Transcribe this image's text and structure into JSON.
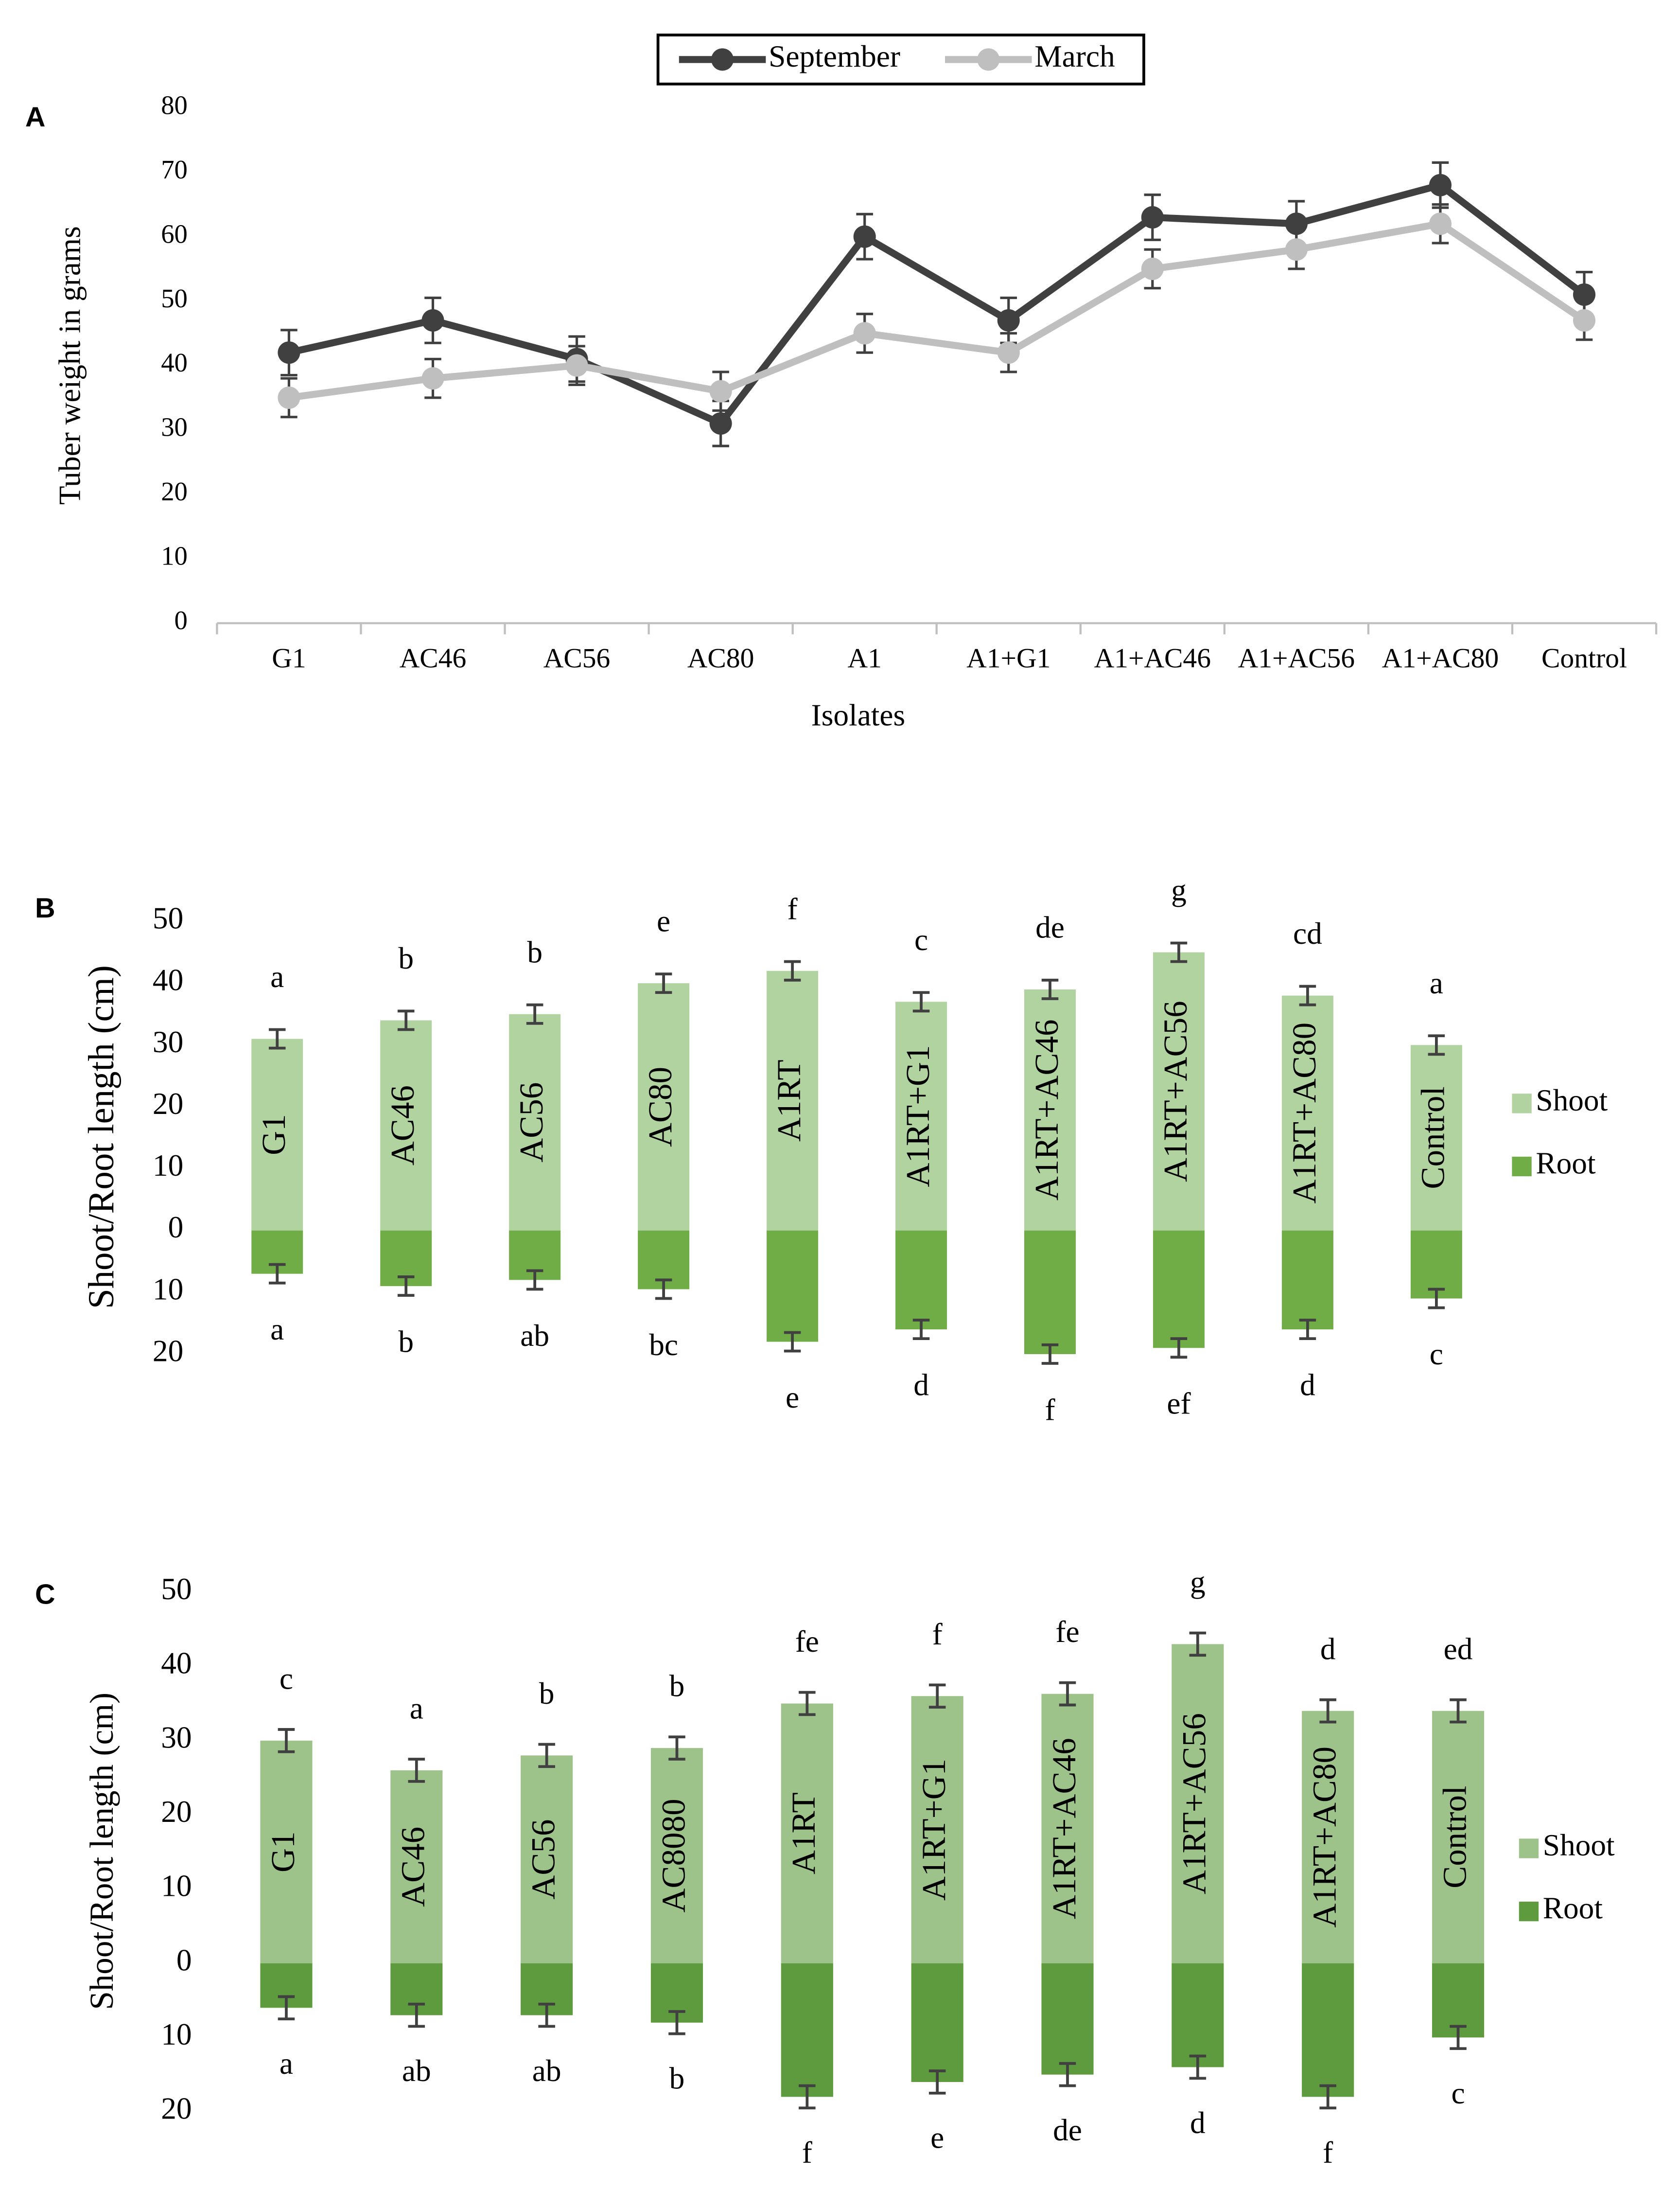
{
  "chart_data": [
    {
      "type": "line",
      "panel": "A",
      "ylabel": "Tuber weight in grams",
      "xlabel": "Isolates",
      "categories": [
        "G1",
        "AC46",
        "AC56",
        "AC80",
        "A1",
        "A1+G1",
        "A1+AC46",
        "A1+AC56",
        "A1+AC80",
        "Control"
      ],
      "series": [
        {
          "name": "September",
          "color": "#404040",
          "values": [
            42,
            47,
            41,
            31,
            60,
            47,
            63,
            62,
            68,
            51
          ],
          "errors": [
            3.5,
            3.5,
            3.5,
            3.5,
            3.5,
            3.5,
            3.5,
            3.5,
            3.5,
            3.5
          ]
        },
        {
          "name": "March",
          "color": "#bfbfbf",
          "values": [
            35,
            38,
            40,
            36,
            45,
            42,
            55,
            58,
            62,
            47
          ],
          "errors": [
            3,
            3,
            3,
            3,
            3,
            3,
            3,
            3,
            3,
            3
          ]
        }
      ],
      "ylim": [
        0,
        80
      ],
      "yticks": [
        0,
        10,
        20,
        30,
        40,
        50,
        60,
        70,
        80
      ],
      "grid": false,
      "legend": "top"
    },
    {
      "type": "bar",
      "panel": "B",
      "ylabel": "Shoot/Root length (cm)",
      "categories": [
        "G1",
        "AC46",
        "AC56",
        "AC80",
        "A1RT",
        "A1RT+G1",
        "A1RT+AC46",
        "A1RT+AC56",
        "A1RT+AC80",
        "Control"
      ],
      "series": [
        {
          "name": "Shoot",
          "color": "#b0d3a0",
          "values": [
            31,
            34,
            35,
            40,
            42,
            37,
            39,
            45,
            38,
            30
          ],
          "errors": [
            1.5,
            1.5,
            1.5,
            1.5,
            1.5,
            1.5,
            1.5,
            1.5,
            1.5,
            1.5
          ],
          "letters": [
            "a",
            "b",
            "b",
            "e",
            "f",
            "c",
            "de",
            "g",
            "cd",
            "a"
          ]
        },
        {
          "name": "Root",
          "color": "#70ad47",
          "values": [
            -7,
            -9,
            -8,
            -9.5,
            -18,
            -16,
            -20,
            -19,
            -16,
            -11
          ],
          "errors": [
            1.5,
            1.5,
            1.5,
            1.5,
            1.5,
            1.5,
            1.5,
            1.5,
            1.5,
            1.5
          ],
          "letters": [
            "a",
            "b",
            "ab",
            "bc",
            "e",
            "d",
            "f",
            "ef",
            "d",
            "c"
          ]
        }
      ],
      "ylim": [
        -20,
        50
      ],
      "yticks": [
        50,
        40,
        30,
        20,
        10,
        0,
        {
          "value": -10,
          "label": "10"
        },
        {
          "value": -20,
          "label": "20"
        }
      ],
      "grid": false,
      "legend": "right"
    },
    {
      "type": "bar",
      "panel": "C",
      "ylabel": "Shoot/Root length (cm)",
      "categories": [
        "G1",
        "AC46",
        "AC56",
        "AC8080",
        "A1RT",
        "A1RT+G1",
        "A1RT+AC46",
        "A1RT+AC56",
        "A1RT+AC80",
        "Control"
      ],
      "series": [
        {
          "name": "Shoot",
          "color": "#9dc38a",
          "values": [
            30,
            26,
            28,
            29,
            35,
            36,
            36.3,
            43,
            34,
            34
          ],
          "errors": [
            1.5,
            1.5,
            1.5,
            1.5,
            1.5,
            1.5,
            1.5,
            1.5,
            1.5,
            1.5
          ],
          "letters": [
            "c",
            "a",
            "b",
            "b",
            "fe",
            "f",
            "fe",
            "g",
            "d",
            "ed"
          ]
        },
        {
          "name": "Root",
          "color": "#5e9b3e",
          "values": [
            -6,
            -7,
            -7,
            -8,
            -18,
            -16,
            -15,
            -14,
            -18,
            -10
          ],
          "errors": [
            1.5,
            1.5,
            1.5,
            1.5,
            1.5,
            1.5,
            1.5,
            1.5,
            1.5,
            1.5
          ],
          "letters": [
            "a",
            "ab",
            "ab",
            "b",
            "f",
            "e",
            "de",
            "d",
            "f",
            "c"
          ]
        }
      ],
      "ylim": [
        -20,
        50
      ],
      "yticks": [
        50,
        40,
        30,
        20,
        10,
        0,
        {
          "value": -10,
          "label": "10"
        },
        {
          "value": -20,
          "label": "20"
        }
      ],
      "grid": false,
      "legend": "right"
    }
  ]
}
